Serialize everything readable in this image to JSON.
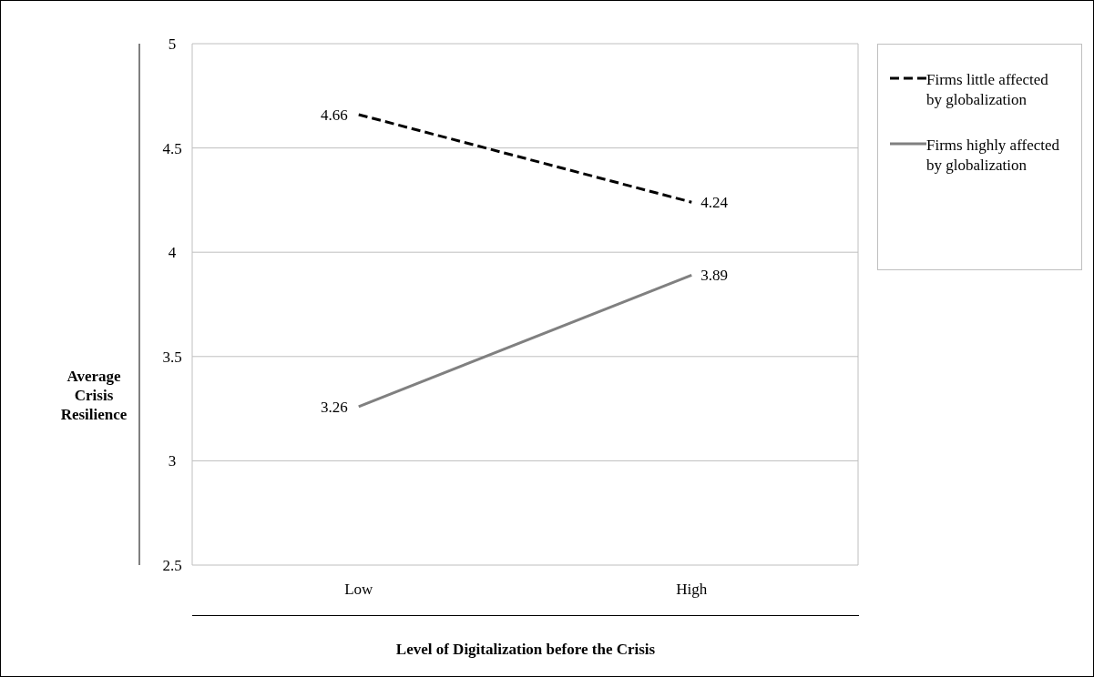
{
  "chart_data": {
    "type": "line",
    "xlabel": "Level of Digitalization before the Crisis",
    "ylabel": "Average Crisis Resilience",
    "categories": [
      "Low",
      "High"
    ],
    "series": [
      {
        "name": "Firms little affected by globalization",
        "color": "#000000",
        "line_style": "dashed",
        "values": [
          4.66,
          4.24
        ]
      },
      {
        "name": "Firms highly affected by globalization",
        "color": "#808080",
        "line_style": "solid",
        "values": [
          3.26,
          3.89
        ]
      }
    ],
    "ylim": [
      2.5,
      5
    ],
    "yticks": [
      2.5,
      3,
      3.5,
      4,
      4.5,
      5
    ],
    "grid": "y",
    "legend": "right",
    "marker": "none",
    "data_labels": true
  }
}
